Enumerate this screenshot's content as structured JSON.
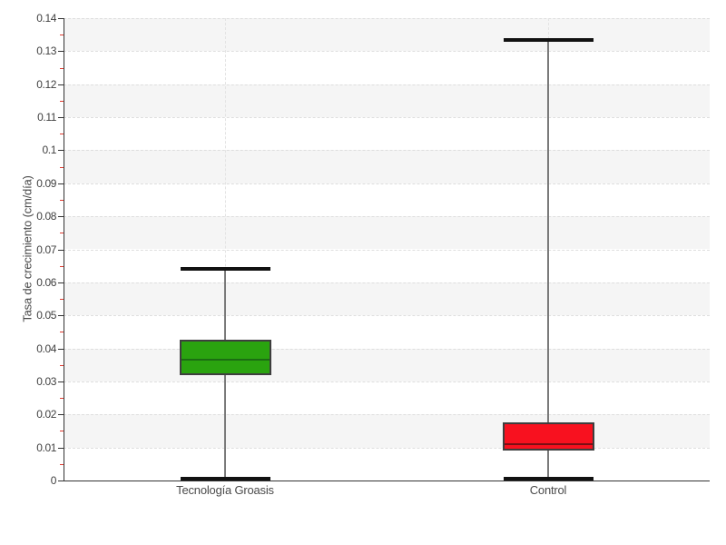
{
  "chart_data": {
    "type": "boxplot",
    "title": "",
    "xlabel": "",
    "ylabel": "Tasa de crecimiento (cm/día)",
    "ylim": [
      0,
      0.14
    ],
    "ytick_step": 0.01,
    "minor_tick_step": 0.005,
    "y_tick_labels": [
      "0",
      "0.01",
      "0.02",
      "0.03",
      "0.04",
      "0.05",
      "0.06",
      "0.07",
      "0.08",
      "0.09",
      "0.1",
      "0.11",
      "0.12",
      "0.13",
      "0.14"
    ],
    "categories": [
      "Tecnología Groasis",
      "Control"
    ],
    "series": [
      {
        "name": "Tecnología Groasis",
        "fill_color": "#2aa30f",
        "median_color": "#1b6e12",
        "min": 0.0005,
        "q1": 0.032,
        "median": 0.0365,
        "q3": 0.0425,
        "max": 0.064
      },
      {
        "name": "Control",
        "fill_color": "#f8111f",
        "median_color": "#7a0f14",
        "min": 0.0005,
        "q1": 0.009,
        "median": 0.011,
        "q3": 0.0175,
        "max": 0.1335
      }
    ],
    "layout": {
      "legend": "none",
      "grid": "dashed horizontal at each 0.01, dashed vertical at category centers",
      "bands": "alternating gray/white horizontal bands every 0.01",
      "category_positions": [
        0.25,
        0.75
      ]
    },
    "colors": {
      "background": "#ffffff",
      "band": "#f5f5f5",
      "grid_h": "#dedede",
      "grid_v": "#e4e4e4",
      "axis": "#333333",
      "major_tick": "#333333",
      "minor_tick": "#e03c31",
      "tick_label": "#404040",
      "category_label": "#4a4a4a",
      "whisker_line": "#7a7a7a",
      "whisker_cap": "#111111",
      "box_border": "#3e3e3e"
    }
  }
}
